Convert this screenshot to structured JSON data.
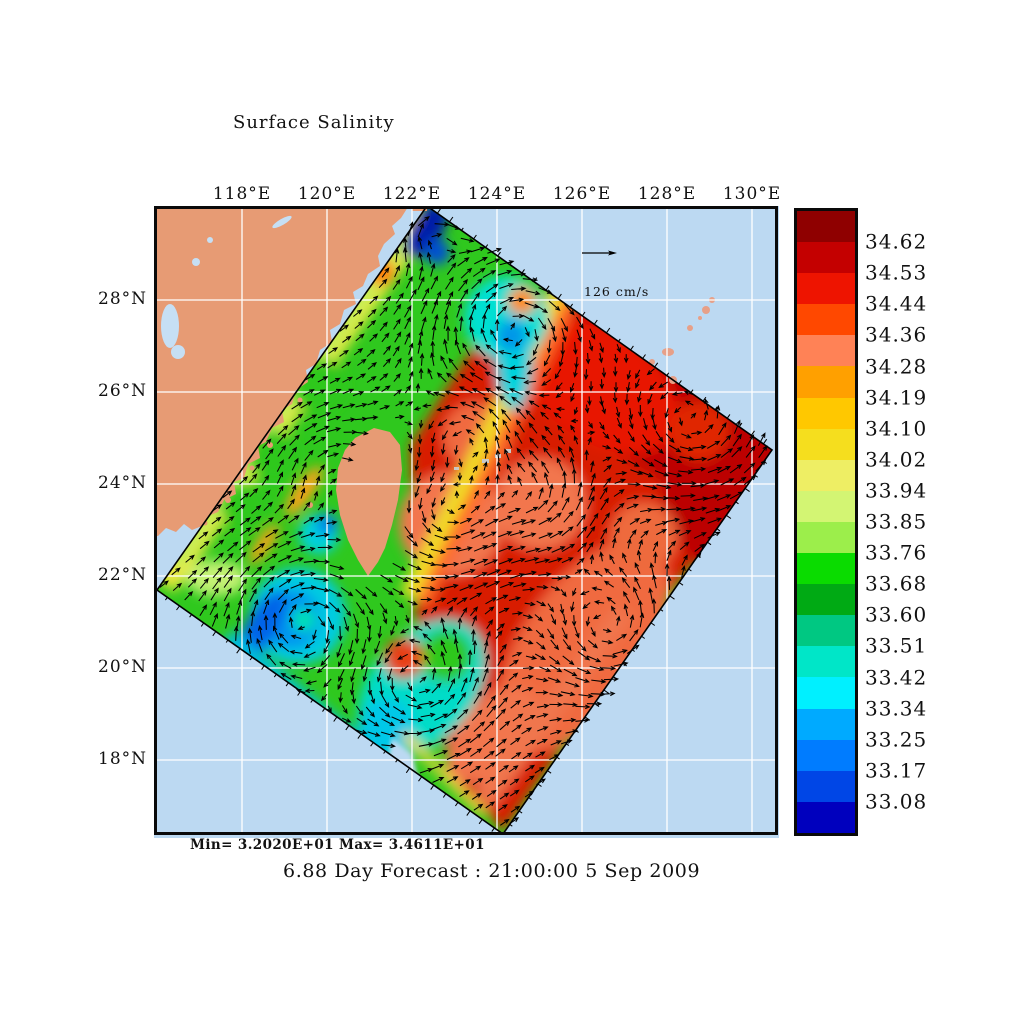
{
  "title": "Surface Salinity",
  "axes": {
    "lon_labels": [
      "118°E",
      "120°E",
      "122°E",
      "124°E",
      "126°E",
      "128°E",
      "130°E"
    ],
    "lat_labels": [
      "28°N",
      "26°N",
      "24°N",
      "22°N",
      "20°N",
      "18°N"
    ]
  },
  "vector_scale": {
    "label": "126 cm/s"
  },
  "stats": "Min= 3.2020E+01  Max= 3.4611E+01",
  "caption": "6.88 Day Forecast : 21:00:00   5 Sep 2009",
  "colorbar": {
    "levels": [
      "34.62",
      "34.53",
      "34.44",
      "34.36",
      "34.28",
      "34.19",
      "34.10",
      "34.02",
      "33.94",
      "33.85",
      "33.76",
      "33.68",
      "33.60",
      "33.51",
      "33.42",
      "33.34",
      "33.25",
      "33.17",
      "33.08"
    ],
    "band_colors": [
      "#8F0000",
      "#C40000",
      "#EE1400",
      "#FF4800",
      "#FF8256",
      "#FFA000",
      "#FFC800",
      "#F5DE1E",
      "#EEEE64",
      "#D3F573",
      "#9CEE4B",
      "#0ADC00",
      "#00AA14",
      "#00C882",
      "#00E6C8",
      "#00F0FF",
      "#00AAFF",
      "#007CFF",
      "#0046E6",
      "#0000BE"
    ]
  },
  "palette": {
    "sea": "#BCD9F2",
    "land": "#E79B74",
    "grid": "#FFFFFF",
    "frame": "#0A0A0A",
    "vectors": "#000000"
  },
  "chart_data": {
    "type": "heatmap",
    "title": "Surface Salinity",
    "xlabel_ticks": [
      "118E",
      "120E",
      "122E",
      "124E",
      "126E",
      "128E",
      "130E"
    ],
    "ylabel_ticks": [
      "28N",
      "26N",
      "24N",
      "22N",
      "20N",
      "18N"
    ],
    "tick_interval_deg": 2,
    "field_min": 32.02,
    "field_max": 34.611,
    "contour_levels": [
      33.08,
      33.17,
      33.25,
      33.34,
      33.42,
      33.51,
      33.6,
      33.68,
      33.76,
      33.85,
      33.94,
      34.02,
      34.1,
      34.19,
      34.28,
      34.36,
      34.44,
      34.53,
      34.62
    ],
    "vector_reference_cm_per_s": 126,
    "forecast": {
      "lead_days": 6.88,
      "valid_time": "21:00:00",
      "valid_date": "5 Sep 2009"
    },
    "legend_position": "right",
    "grid": true,
    "notes": "Rotated model domain around Taiwan: fresh (green/cyan/blue 33.1-33.9) water in Taiwan Strait and northern tip, saline Kuroshio water (red 34.3-34.6) east of Taiwan with warm-core eddies near 123-125E 23-25N, cyclonic low-salinity eddy southwest of Taiwan near 119.5E 21N"
  }
}
